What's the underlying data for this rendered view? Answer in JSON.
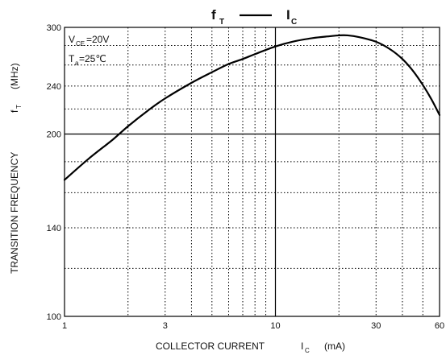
{
  "chart_data": {
    "type": "line",
    "title": {
      "main_left": "f",
      "main_left_sub": "T",
      "connector": "—",
      "main_right": "I",
      "main_right_sub": "C"
    },
    "conditions": [
      {
        "symbol": "V",
        "sub": "CE",
        "value": "=20V"
      },
      {
        "symbol": "T",
        "sub": "a",
        "value": "=25℃"
      }
    ],
    "xlabel": {
      "text": "COLLECTOR CURRENT",
      "symbol": "I",
      "sub": "C",
      "unit": "(mA)"
    },
    "ylabel": {
      "text": "TRANSITION FREQUENCY",
      "symbol": "f",
      "sub": "T",
      "unit": "(MHz)"
    },
    "x_scale": "log",
    "y_scale": "log",
    "xlim": [
      1,
      60
    ],
    "ylim": [
      100,
      300
    ],
    "x_ticks": [
      {
        "value": 1,
        "label": "1"
      },
      {
        "value": 3,
        "label": "3"
      },
      {
        "value": 10,
        "label": "10"
      },
      {
        "value": 30,
        "label": "30"
      },
      {
        "value": 60,
        "label": "60"
      }
    ],
    "y_ticks": [
      {
        "value": 100,
        "label": "100"
      },
      {
        "value": 140,
        "label": "140"
      },
      {
        "value": 200,
        "label": "200"
      },
      {
        "value": 240,
        "label": "240"
      },
      {
        "value": 300,
        "label": "300"
      }
    ],
    "x_minor_grid": [
      2,
      3,
      4,
      5,
      6,
      7,
      8,
      9,
      20,
      30,
      40,
      50
    ],
    "y_minor_grid": [
      120,
      140,
      160,
      180,
      220,
      240,
      260,
      280
    ],
    "x_major_grid": [
      10
    ],
    "y_major_grid": [
      200
    ],
    "grid": true,
    "series": [
      {
        "x": [
          1,
          1.3,
          1.7,
          2,
          2.5,
          3,
          4,
          5,
          6,
          7,
          8,
          10,
          12,
          15,
          18,
          20,
          22,
          25,
          30,
          35,
          40,
          45,
          50,
          55,
          60
        ],
        "y": [
          168,
          182,
          196,
          206,
          219,
          229,
          243,
          253,
          261,
          266,
          271,
          279,
          284,
          288,
          290,
          291,
          291,
          289,
          284,
          276,
          266,
          254,
          241,
          228,
          215
        ]
      }
    ]
  }
}
